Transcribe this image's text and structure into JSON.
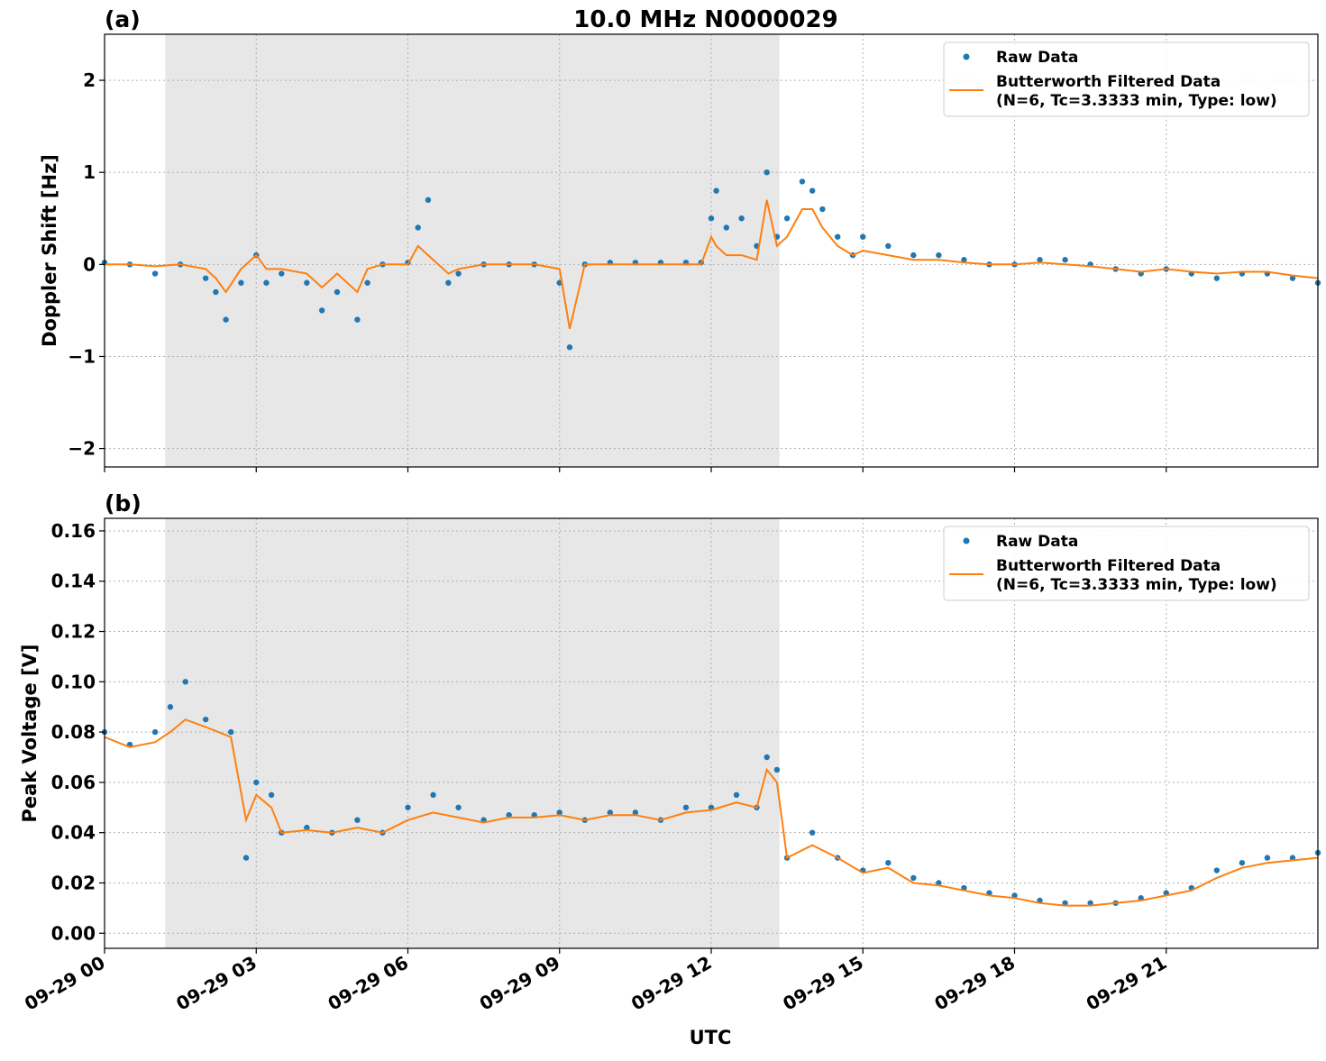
{
  "figure": {
    "title": "10.0 MHz N0000029",
    "xlabel": "UTC"
  },
  "chart_data": [
    {
      "type": "scatter",
      "panel_label": "(a)",
      "ylabel": "Doppler Shift [Hz]",
      "xlim": [
        0,
        24
      ],
      "ylim": [
        -2.2,
        2.5
      ],
      "yticks": [
        2,
        1,
        0,
        -1,
        -2
      ],
      "ytick_labels": [
        "2",
        "1",
        "0",
        "−1",
        "−2"
      ],
      "xticks": [
        0,
        3,
        6,
        9,
        12,
        15,
        18,
        21
      ],
      "xtick_labels": [
        "09-29 00",
        "09-29 03",
        "09-29 06",
        "09-29 09",
        "09-29 12",
        "09-29 15",
        "09-29 18",
        "09-29 21"
      ],
      "grid": true,
      "legend_position": "upper-right",
      "shaded_region_x": [
        1.2,
        13.35
      ],
      "colors": {
        "raw": "#1f77b4",
        "filtered": "#ff7f0e",
        "shade": "#e7e7e7"
      },
      "series": [
        {
          "name": "Raw Data",
          "kind": "points",
          "x": [
            0.0,
            0.5,
            1.0,
            1.5,
            2.0,
            2.2,
            2.4,
            2.7,
            3.0,
            3.2,
            3.5,
            4.0,
            4.3,
            4.6,
            5.0,
            5.2,
            5.5,
            6.0,
            6.2,
            6.4,
            6.8,
            7.0,
            7.5,
            8.0,
            8.5,
            9.0,
            9.2,
            9.5,
            10.0,
            10.5,
            11.0,
            11.5,
            11.8,
            12.0,
            12.1,
            12.3,
            12.6,
            12.9,
            13.1,
            13.3,
            13.5,
            13.8,
            14.0,
            14.2,
            14.5,
            14.8,
            15.0,
            15.5,
            16.0,
            16.5,
            17.0,
            17.5,
            18.0,
            18.5,
            19.0,
            19.5,
            20.0,
            20.5,
            21.0,
            21.5,
            22.0,
            22.5,
            23.0,
            23.5,
            24.0
          ],
          "y": [
            0.02,
            0.0,
            -0.1,
            0.0,
            -0.15,
            -0.3,
            -0.6,
            -0.2,
            0.1,
            -0.2,
            -0.1,
            -0.2,
            -0.5,
            -0.3,
            -0.6,
            -0.2,
            0.0,
            0.02,
            0.4,
            0.7,
            -0.2,
            -0.1,
            0.0,
            0.0,
            0.0,
            -0.2,
            -0.9,
            0.0,
            0.02,
            0.02,
            0.02,
            0.02,
            0.02,
            0.5,
            0.8,
            0.4,
            0.5,
            0.2,
            1.0,
            0.3,
            0.5,
            0.9,
            0.8,
            0.6,
            0.3,
            0.1,
            0.3,
            0.2,
            0.1,
            0.1,
            0.05,
            0.0,
            0.0,
            0.05,
            0.05,
            0.0,
            -0.05,
            -0.1,
            -0.05,
            -0.1,
            -0.15,
            -0.1,
            -0.1,
            -0.15,
            -0.2
          ]
        },
        {
          "name": "Butterworth Filtered Data\n(N=6, Tc=3.3333 min, Type: low)",
          "kind": "line",
          "x": [
            0.0,
            0.5,
            1.0,
            1.5,
            2.0,
            2.2,
            2.4,
            2.7,
            3.0,
            3.2,
            3.5,
            4.0,
            4.3,
            4.6,
            5.0,
            5.2,
            5.5,
            6.0,
            6.2,
            6.4,
            6.8,
            7.0,
            7.5,
            8.0,
            8.5,
            9.0,
            9.2,
            9.5,
            10.0,
            10.5,
            11.0,
            11.5,
            11.8,
            12.0,
            12.1,
            12.3,
            12.6,
            12.9,
            13.1,
            13.3,
            13.5,
            13.8,
            14.0,
            14.2,
            14.5,
            14.8,
            15.0,
            15.5,
            16.0,
            16.5,
            17.0,
            17.5,
            18.0,
            18.5,
            19.0,
            19.5,
            20.0,
            20.5,
            21.0,
            21.5,
            22.0,
            22.5,
            23.0,
            23.5,
            24.0
          ],
          "y": [
            0.0,
            0.0,
            -0.02,
            0.0,
            -0.05,
            -0.15,
            -0.3,
            -0.05,
            0.1,
            -0.05,
            -0.05,
            -0.1,
            -0.25,
            -0.1,
            -0.3,
            -0.05,
            0.0,
            0.0,
            0.2,
            0.1,
            -0.1,
            -0.05,
            0.0,
            0.0,
            0.0,
            -0.05,
            -0.7,
            0.0,
            0.0,
            0.0,
            0.0,
            0.0,
            0.0,
            0.3,
            0.2,
            0.1,
            0.1,
            0.05,
            0.7,
            0.2,
            0.3,
            0.6,
            0.6,
            0.4,
            0.2,
            0.1,
            0.15,
            0.1,
            0.05,
            0.05,
            0.02,
            0.0,
            0.0,
            0.02,
            0.0,
            -0.02,
            -0.05,
            -0.08,
            -0.05,
            -0.08,
            -0.1,
            -0.08,
            -0.08,
            -0.12,
            -0.15
          ]
        }
      ]
    },
    {
      "type": "scatter",
      "panel_label": "(b)",
      "ylabel": "Peak Voltage [V]",
      "xlim": [
        0,
        24
      ],
      "ylim": [
        -0.006,
        0.165
      ],
      "yticks": [
        0.16,
        0.14,
        0.12,
        0.1,
        0.08,
        0.06,
        0.04,
        0.02,
        0.0
      ],
      "ytick_labels": [
        "0.16",
        "0.14",
        "0.12",
        "0.10",
        "0.08",
        "0.06",
        "0.04",
        "0.02",
        "0.00"
      ],
      "xticks": [
        0,
        3,
        6,
        9,
        12,
        15,
        18,
        21
      ],
      "xtick_labels": [
        "09-29 00",
        "09-29 03",
        "09-29 06",
        "09-29 09",
        "09-29 12",
        "09-29 15",
        "09-29 18",
        "09-29 21"
      ],
      "grid": true,
      "legend_position": "upper-right",
      "shaded_region_x": [
        1.2,
        13.35
      ],
      "colors": {
        "raw": "#1f77b4",
        "filtered": "#ff7f0e",
        "shade": "#e7e7e7"
      },
      "series": [
        {
          "name": "Raw Data",
          "kind": "points",
          "x": [
            0.0,
            0.5,
            1.0,
            1.3,
            1.6,
            2.0,
            2.5,
            2.8,
            3.0,
            3.3,
            3.5,
            4.0,
            4.5,
            5.0,
            5.5,
            6.0,
            6.5,
            7.0,
            7.5,
            8.0,
            8.5,
            9.0,
            9.5,
            10.0,
            10.5,
            11.0,
            11.5,
            12.0,
            12.5,
            12.9,
            13.1,
            13.3,
            13.5,
            14.0,
            14.5,
            15.0,
            15.5,
            16.0,
            16.5,
            17.0,
            17.5,
            18.0,
            18.5,
            19.0,
            19.5,
            20.0,
            20.5,
            21.0,
            21.5,
            22.0,
            22.5,
            23.0,
            23.5,
            24.0
          ],
          "y": [
            0.08,
            0.075,
            0.08,
            0.09,
            0.1,
            0.085,
            0.08,
            0.03,
            0.06,
            0.055,
            0.04,
            0.042,
            0.04,
            0.045,
            0.04,
            0.05,
            0.055,
            0.05,
            0.045,
            0.047,
            0.047,
            0.048,
            0.045,
            0.048,
            0.048,
            0.045,
            0.05,
            0.05,
            0.055,
            0.05,
            0.07,
            0.065,
            0.03,
            0.04,
            0.03,
            0.025,
            0.028,
            0.022,
            0.02,
            0.018,
            0.016,
            0.015,
            0.013,
            0.012,
            0.012,
            0.012,
            0.014,
            0.016,
            0.018,
            0.025,
            0.028,
            0.03,
            0.03,
            0.032
          ]
        },
        {
          "name": "Butterworth Filtered Data\n(N=6, Tc=3.3333 min, Type: low)",
          "kind": "line",
          "x": [
            0.0,
            0.5,
            1.0,
            1.3,
            1.6,
            2.0,
            2.5,
            2.8,
            3.0,
            3.3,
            3.5,
            4.0,
            4.5,
            5.0,
            5.5,
            6.0,
            6.5,
            7.0,
            7.5,
            8.0,
            8.5,
            9.0,
            9.5,
            10.0,
            10.5,
            11.0,
            11.5,
            12.0,
            12.5,
            12.9,
            13.1,
            13.3,
            13.5,
            14.0,
            14.5,
            15.0,
            15.5,
            16.0,
            16.5,
            17.0,
            17.5,
            18.0,
            18.5,
            19.0,
            19.5,
            20.0,
            20.5,
            21.0,
            21.5,
            22.0,
            22.5,
            23.0,
            23.5,
            24.0
          ],
          "y": [
            0.078,
            0.074,
            0.076,
            0.08,
            0.085,
            0.082,
            0.078,
            0.045,
            0.055,
            0.05,
            0.04,
            0.041,
            0.04,
            0.042,
            0.04,
            0.045,
            0.048,
            0.046,
            0.044,
            0.046,
            0.046,
            0.047,
            0.045,
            0.047,
            0.047,
            0.045,
            0.048,
            0.049,
            0.052,
            0.05,
            0.065,
            0.06,
            0.03,
            0.035,
            0.03,
            0.024,
            0.026,
            0.02,
            0.019,
            0.017,
            0.015,
            0.014,
            0.012,
            0.011,
            0.011,
            0.012,
            0.013,
            0.015,
            0.017,
            0.022,
            0.026,
            0.028,
            0.029,
            0.03
          ]
        }
      ]
    }
  ]
}
